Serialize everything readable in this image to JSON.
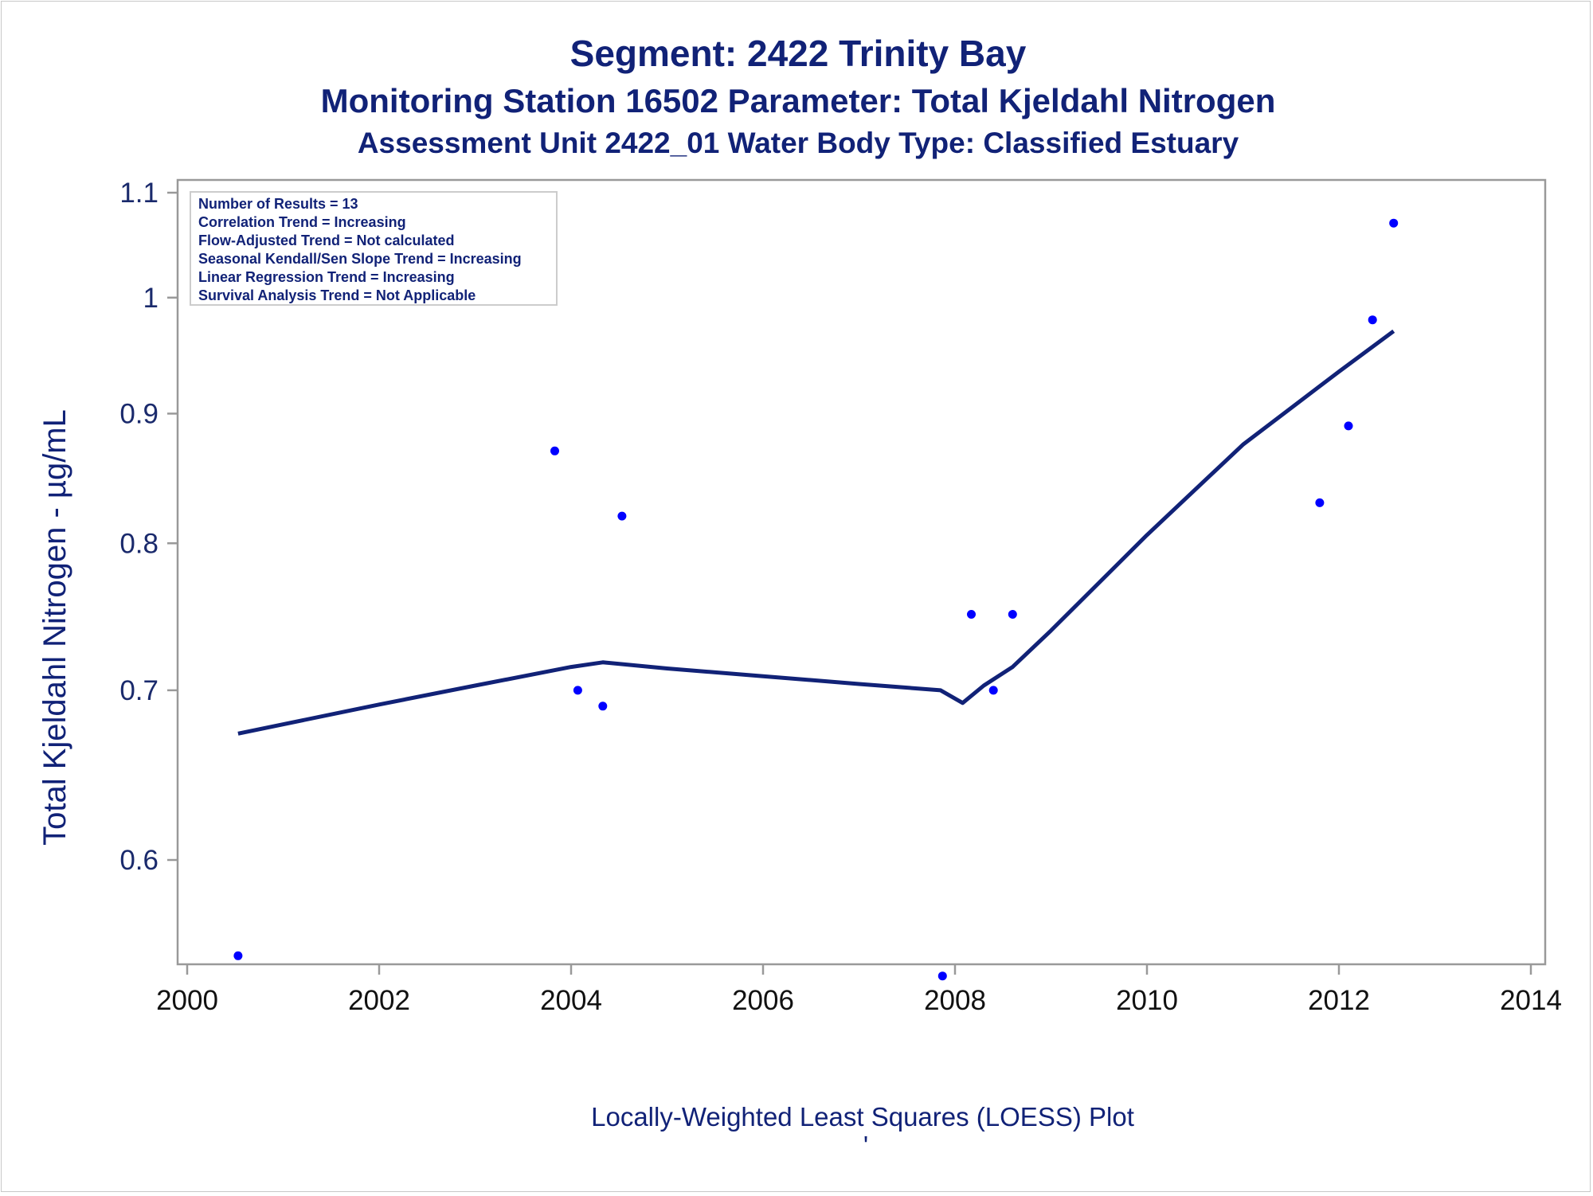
{
  "titles": {
    "line1": "Segment: 2422  Trinity Bay",
    "line2": "Monitoring Station 16502 Parameter: Total Kjeldahl Nitrogen",
    "line3": "Assessment Unit 2422_01   Water Body Type: Classified Estuary"
  },
  "footnote": {
    "line1": "Locally-Weighted Least Squares (LOESS) Plot",
    "line2": "'"
  },
  "stats_box": [
    "Number of Results = 13",
    "Correlation Trend = Increasing",
    "Flow-Adjusted Trend = Not calculated",
    "Seasonal Kendall/Sen Slope Trend = Increasing",
    "Linear Regression Trend = Increasing",
    "Survival Analysis Trend = Not Applicable"
  ],
  "colors": {
    "points": "#0000ff",
    "loess_line": "#112277",
    "axis": "#999999",
    "text": "#112277"
  },
  "chart_data": {
    "type": "scatter",
    "ylabel": "Total Kjeldahl Nitrogen -  µg/mL",
    "xlabel": "",
    "xlim": [
      2000,
      2014
    ],
    "ylim": [
      0.54,
      1.1
    ],
    "y_scale": "log",
    "x_ticks": [
      "2000",
      "2002",
      "2004",
      "2006",
      "2008",
      "2010",
      "2012",
      "2014"
    ],
    "y_ticks": [
      "0.6",
      "0.7",
      "0.8",
      "0.9",
      "1",
      "1.1"
    ],
    "grid": false,
    "legend_position": "top-left",
    "series": [
      {
        "kind": "points",
        "x": [
          2000.53,
          2003.83,
          2004.07,
          2004.33,
          2004.53,
          2007.87,
          2008.17,
          2008.4,
          2008.6,
          2011.8,
          2012.1,
          2012.35,
          2012.57
        ],
        "y": [
          0.55,
          0.87,
          0.7,
          0.69,
          0.82,
          0.54,
          0.75,
          0.7,
          0.75,
          0.83,
          0.89,
          0.98,
          1.07
        ]
      },
      {
        "kind": "loess",
        "x": [
          2000.53,
          2002.0,
          2003.0,
          2004.0,
          2004.33,
          2005.0,
          2006.0,
          2007.0,
          2007.85,
          2008.08,
          2008.3,
          2008.6,
          2009.0,
          2010.0,
          2011.0,
          2012.0,
          2012.57
        ],
        "y": [
          0.673,
          0.691,
          0.703,
          0.715,
          0.718,
          0.714,
          0.709,
          0.704,
          0.7,
          0.692,
          0.703,
          0.715,
          0.739,
          0.806,
          0.875,
          0.935,
          0.97
        ]
      }
    ]
  }
}
